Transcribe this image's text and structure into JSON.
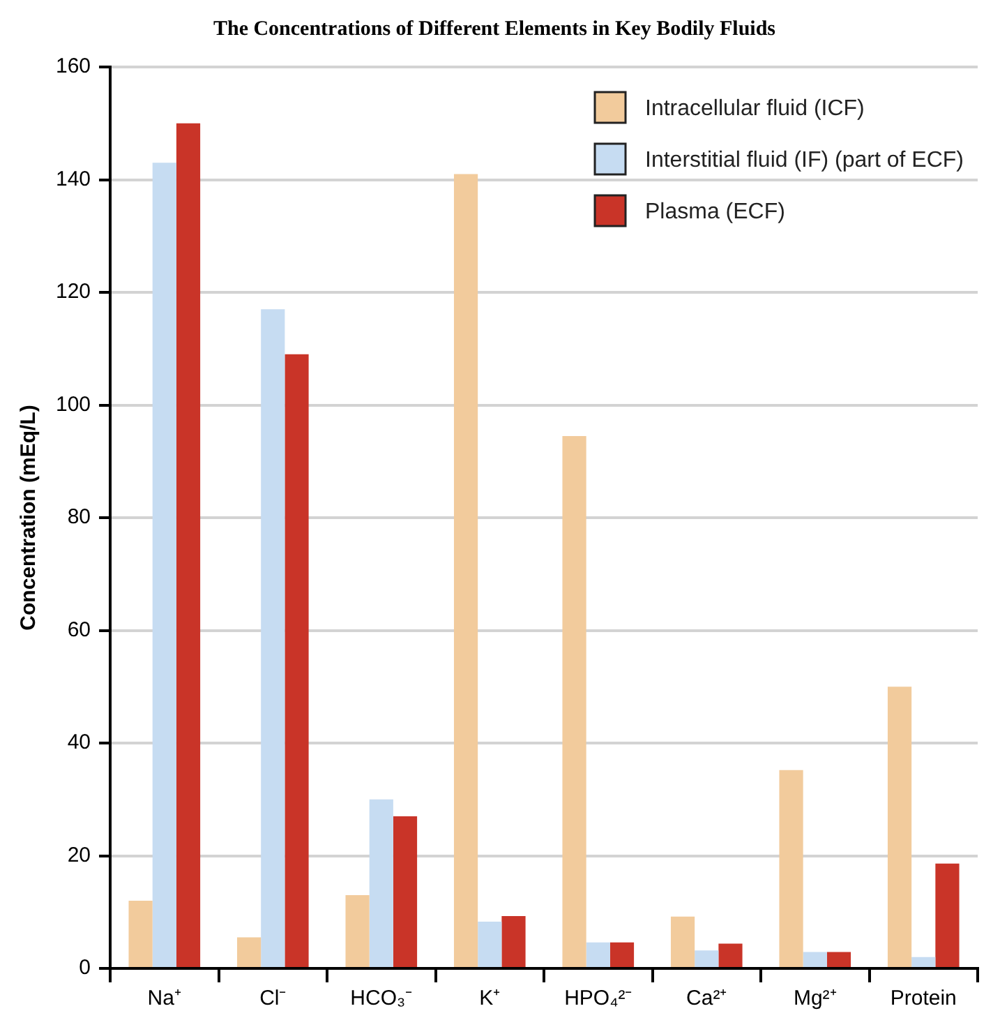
{
  "chart_data": {
    "type": "bar",
    "title": "The Concentrations of Different Elements in Key Bodily Fluids",
    "ylabel": "Concentration (mEq/L)",
    "categories": [
      "Na⁺",
      "Cl⁻",
      "HCO₃⁻",
      "K⁺",
      "HPO₄²⁻",
      "Ca²⁺",
      "Mg²⁺",
      "Protein"
    ],
    "series": [
      {
        "name": "Intracellular fluid (ICF)",
        "color": "#f2cb9c",
        "values": [
          12,
          5.5,
          13,
          141,
          94.5,
          9.2,
          35.2,
          50
        ]
      },
      {
        "name": "Interstitial fluid (IF) (part of ECF)",
        "color": "#c6dcf2",
        "values": [
          143,
          117,
          30,
          8.3,
          4.6,
          3.2,
          2.9,
          2
        ]
      },
      {
        "name": "Plasma (ECF)",
        "color": "#c93428",
        "values": [
          150,
          109,
          27,
          9.3,
          4.6,
          4.4,
          2.9,
          18.6
        ]
      }
    ],
    "ylim": [
      0,
      160
    ],
    "yticks": [
      0,
      20,
      40,
      60,
      80,
      100,
      120,
      140,
      160
    ],
    "grid": "y",
    "legend": "top right"
  }
}
